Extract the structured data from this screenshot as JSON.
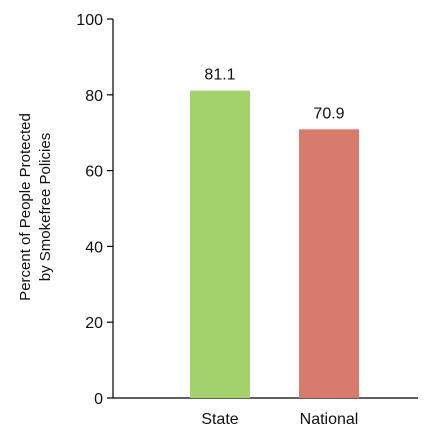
{
  "chart_data": {
    "type": "bar",
    "categories": [
      "State",
      "National"
    ],
    "values": [
      81.1,
      70.9
    ],
    "value_labels": [
      "81.1",
      "70.9"
    ],
    "colors": [
      "#a3d16b",
      "#d97b6c"
    ],
    "title": "",
    "xlabel": "",
    "ylabel_lines": [
      "Percent of People Protected",
      "by Smokefree Policies"
    ],
    "ylim": [
      0,
      100
    ],
    "yticks": [
      0,
      20,
      40,
      60,
      80,
      100
    ],
    "ytick_labels": [
      "0",
      "20",
      "40",
      "60",
      "80",
      "100"
    ],
    "grid": false,
    "legend": "none"
  }
}
